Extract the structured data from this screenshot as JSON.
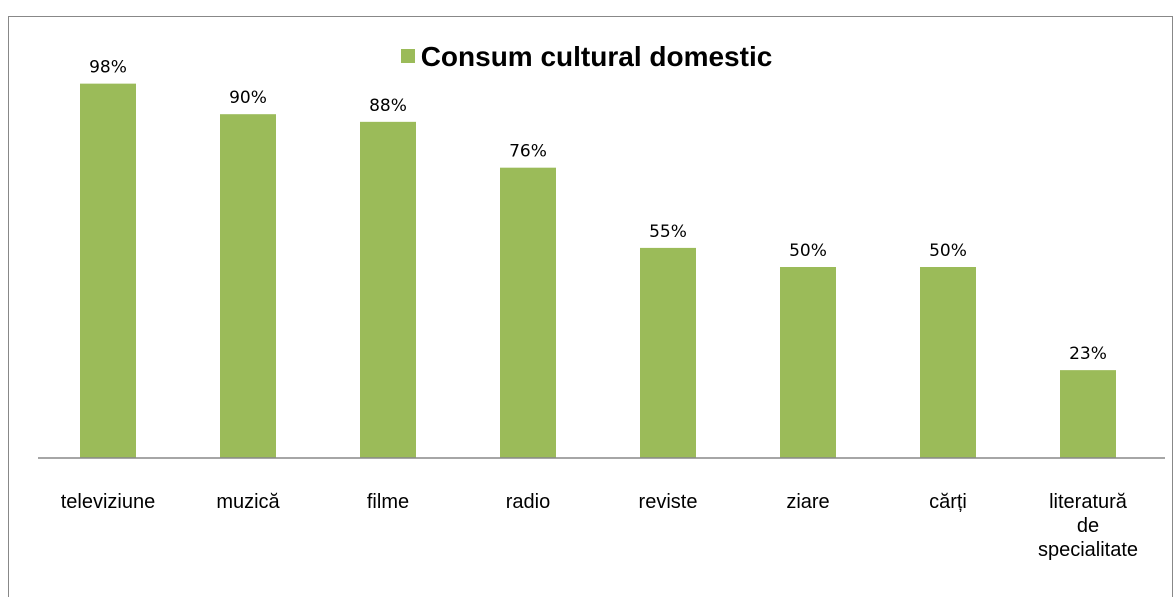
{
  "top_text": "",
  "chart_data": {
    "type": "bar",
    "title": "Consum cultural domestic",
    "categories": [
      "televiziune",
      "muzică",
      "filme",
      "radio",
      "reviste",
      "ziare",
      "cărți",
      "literatură de specialitate"
    ],
    "series": [
      {
        "name": "Consum cultural domestic",
        "values": [
          98,
          90,
          88,
          76,
          55,
          50,
          50,
          23
        ],
        "labels": [
          "98%",
          "90%",
          "88%",
          "76%",
          "55%",
          "50%",
          "50%",
          "23%"
        ]
      }
    ],
    "ylim": [
      0,
      100
    ],
    "unit": "%",
    "grid": false,
    "legend_placement": "top",
    "colors": {
      "bar": "#9BBB59",
      "axis": "#888888",
      "frame": "#888888"
    }
  }
}
